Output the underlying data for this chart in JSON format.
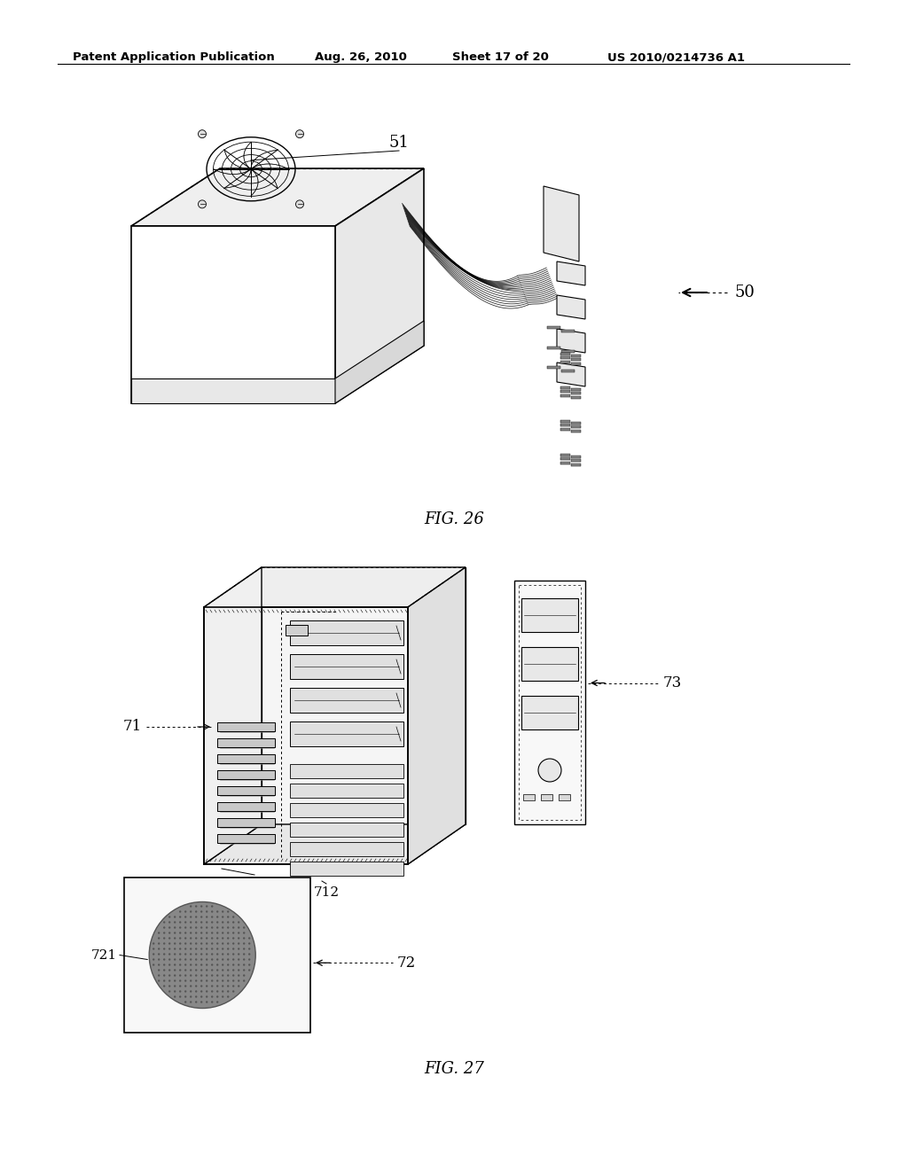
{
  "bg_color": "#ffffff",
  "header_text": "Patent Application Publication",
  "header_date": "Aug. 26, 2010",
  "header_sheet": "Sheet 17 of 20",
  "header_patent": "US 2010/0214736 A1",
  "fig26_label": "FIG. 26",
  "fig27_label": "FIG. 27",
  "label_51": "51",
  "label_50": "50",
  "label_71": "71",
  "label_72": "72",
  "label_73": "73",
  "label_712": "712",
  "label_721": "721",
  "lc": "#000000",
  "face_white": "#ffffff",
  "face_light": "#f0f0f0",
  "face_mid": "#e0e0e0",
  "face_dark": "#d0d0d0"
}
